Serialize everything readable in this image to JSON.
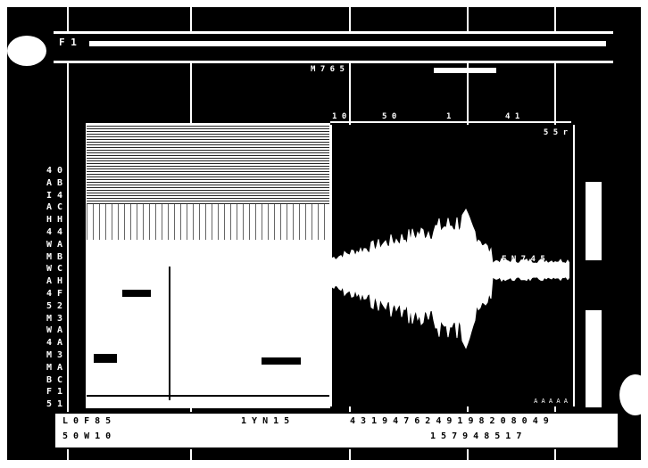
{
  "window": {
    "title_label": "F 1"
  },
  "mode_bar": {
    "mode_label": "M 7 6 5"
  },
  "freq_axis": {
    "ticks": [
      "1 0",
      "5 0",
      "1",
      "4 1"
    ]
  },
  "left_scale": {
    "labels": [
      "4 0",
      "A B",
      "I 4",
      "A C",
      "H H",
      "4 4",
      "W A",
      "M B",
      "W C",
      "A H",
      "4 F",
      "5 2",
      "M 3",
      "W A",
      "4 A",
      "M 3",
      "M A",
      "B C",
      "F 1",
      "5 1"
    ]
  },
  "waveform": {
    "corner_label": "5 5 r",
    "readout": "F N 7 4 5",
    "bottom_label": "A A A A A"
  },
  "meters": {
    "upper_level": 0.6,
    "lower_level": 0.35
  },
  "status": {
    "line1_left": "L 0 F 8 5",
    "line1_mid": "1 Y N 1 5",
    "line1_right": "4 3 1 9 4 7 6 2 4 9 1 9 8 2 0 8 0 4 9",
    "line2_left": "5 0 W 1 0",
    "line2_right": "1 5 7 9 4 8 5 1 7"
  },
  "colors": {
    "screen": "#000000",
    "foreground": "#ffffff"
  }
}
